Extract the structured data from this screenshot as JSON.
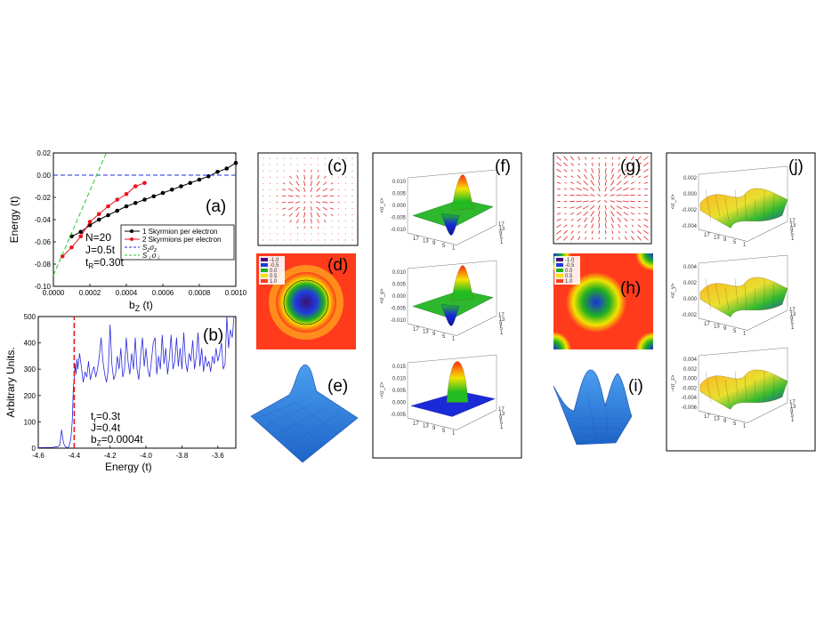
{
  "panel_labels": {
    "a": "(a)",
    "b": "(b)",
    "c": "(c)",
    "d": "(d)",
    "e": "(e)",
    "f": "(f)",
    "g": "(g)",
    "h": "(h)",
    "i": "(i)",
    "j": "(j)"
  },
  "chart_data": [
    {
      "id": "a",
      "type": "line",
      "title": "",
      "xlabel": "b",
      "xlabel_sub": "Z",
      "xlabel_unit": " (t)",
      "ylabel": "Energy (t)",
      "xlim": [
        0,
        0.001
      ],
      "ylim": [
        -0.1,
        0.02
      ],
      "xticks": [
        "0.0000",
        "0.0002",
        "0.0004",
        "0.0006",
        "0.0008",
        "0.0010"
      ],
      "xtick_values": [
        0,
        0.0002,
        0.0004,
        0.0006,
        0.0008,
        0.001
      ],
      "yticks": [
        "0.02",
        "0.00",
        "-0.02",
        "-0.04",
        "-0.06",
        "-0.08",
        "-0.10"
      ],
      "ytick_values": [
        0.02,
        0,
        -0.02,
        -0.04,
        -0.06,
        -0.08,
        -0.1
      ],
      "series": [
        {
          "name": "1 Skyrmion per electron",
          "color": "#000000",
          "style": "line-markers",
          "x": [
            0.0001,
            0.00015,
            0.0002,
            0.00025,
            0.0003,
            0.00035,
            0.0004,
            0.00045,
            0.0005,
            0.00055,
            0.0006,
            0.00065,
            0.0007,
            0.00075,
            0.0008,
            0.00085,
            0.0009,
            0.00095,
            0.001
          ],
          "y": [
            -0.055,
            -0.051,
            -0.045,
            -0.04,
            -0.036,
            -0.032,
            -0.028,
            -0.025,
            -0.022,
            -0.019,
            -0.016,
            -0.013,
            -0.01,
            -0.007,
            -0.004,
            -0.001,
            0.003,
            0.006,
            0.011
          ]
        },
        {
          "name": "2 Skyrmions per electron",
          "color": "#e8141c",
          "style": "line-markers",
          "x": [
            5e-05,
            0.0001,
            0.00015,
            0.0002,
            0.00025,
            0.0003,
            0.00035,
            0.0004,
            0.00045,
            0.0005
          ],
          "y": [
            -0.073,
            -0.065,
            -0.055,
            -0.042,
            -0.035,
            -0.028,
            -0.022,
            -0.017,
            -0.01,
            -0.007
          ]
        },
        {
          "name": "S_z σ_z",
          "color": "#1f2ee0",
          "style": "dashed",
          "x": [
            0,
            0.001
          ],
          "y": [
            0,
            0
          ]
        },
        {
          "name": "S_⊥ σ_⊥",
          "color": "#22cc22",
          "style": "dashed",
          "x": [
            0,
            0.00029
          ],
          "y": [
            -0.09,
            0.02
          ]
        }
      ],
      "legend": {
        "placement": "center-right",
        "entries": [
          {
            "main": "1 Skyrmion per electron"
          },
          {
            "main": "2 Skyrmions per electron"
          },
          {
            "main": "S",
            "sub": "z",
            "mid": "σ",
            "sub2": "z"
          },
          {
            "main": "S",
            "sub": "⊥",
            "mid": "σ",
            "sub2": "⊥"
          }
        ]
      },
      "annotations": [
        {
          "text": "N=20"
        },
        {
          "text": "J=0.5t"
        },
        {
          "text": "t",
          "sub": "R",
          "rest": "=0.30t"
        }
      ]
    },
    {
      "id": "b",
      "type": "line",
      "xlabel": "Energy (t)",
      "ylabel": "Arbitrary Units.",
      "xlim": [
        -4.6,
        -3.5
      ],
      "ylim": [
        0,
        500
      ],
      "xticks": [
        "-4.6",
        "-4.4",
        "-4.2",
        "-4.0",
        "-3.8",
        "-3.6"
      ],
      "xtick_values": [
        -4.6,
        -4.4,
        -4.2,
        -4.0,
        -3.8,
        -3.6
      ],
      "yticks": [
        "500",
        "400",
        "300",
        "200",
        "100",
        "0"
      ],
      "ytick_values": [
        500,
        400,
        300,
        200,
        100,
        0
      ],
      "series": [
        {
          "name": "spectrum",
          "color": "#2a2ae0",
          "style": "line",
          "x": [
            -4.6,
            -4.52,
            -4.49,
            -4.48,
            -4.475,
            -4.47,
            -4.46,
            -4.45,
            -4.44,
            -4.435,
            -4.43,
            -4.42,
            -4.415,
            -4.41,
            -4.405,
            -4.4,
            -4.395,
            -4.39,
            -4.385,
            -4.38,
            -4.37,
            -4.36,
            -4.35,
            -4.34,
            -4.33,
            -4.32,
            -4.31,
            -4.3,
            -4.29,
            -4.28,
            -4.27,
            -4.26,
            -4.25,
            -4.24,
            -4.23,
            -4.22,
            -4.21,
            -4.2,
            -4.19,
            -4.18,
            -4.17,
            -4.16,
            -4.15,
            -4.14,
            -4.13,
            -4.12,
            -4.11,
            -4.1,
            -4.09,
            -4.08,
            -4.07,
            -4.06,
            -4.05,
            -4.04,
            -4.03,
            -4.02,
            -4.01,
            -4.0,
            -3.99,
            -3.98,
            -3.97,
            -3.96,
            -3.95,
            -3.94,
            -3.93,
            -3.92,
            -3.91,
            -3.9,
            -3.89,
            -3.88,
            -3.87,
            -3.86,
            -3.85,
            -3.84,
            -3.83,
            -3.82,
            -3.81,
            -3.8,
            -3.79,
            -3.78,
            -3.77,
            -3.76,
            -3.75,
            -3.74,
            -3.73,
            -3.72,
            -3.71,
            -3.7,
            -3.69,
            -3.68,
            -3.67,
            -3.66,
            -3.65,
            -3.64,
            -3.63,
            -3.62,
            -3.61,
            -3.6,
            -3.59,
            -3.58,
            -3.57,
            -3.56,
            -3.55,
            -3.54,
            -3.53,
            -3.52,
            -3.51
          ],
          "y": [
            2,
            3,
            6,
            12,
            40,
            70,
            20,
            6,
            3,
            2,
            4,
            30,
            60,
            110,
            230,
            260,
            320,
            280,
            340,
            300,
            360,
            310,
            250,
            290,
            270,
            330,
            260,
            290,
            310,
            270,
            300,
            350,
            420,
            330,
            280,
            250,
            300,
            470,
            320,
            260,
            280,
            350,
            300,
            380,
            270,
            300,
            420,
            330,
            280,
            360,
            300,
            420,
            300,
            260,
            350,
            420,
            310,
            380,
            300,
            270,
            330,
            400,
            420,
            280,
            350,
            300,
            430,
            320,
            380,
            280,
            340,
            430,
            300,
            330,
            420,
            310,
            380,
            300,
            440,
            330,
            290,
            360,
            330,
            410,
            300,
            350,
            440,
            310,
            380,
            290,
            350,
            310,
            330,
            290,
            350,
            320,
            380,
            330,
            360,
            400,
            300,
            320,
            500,
            380,
            450,
            420,
            500
          ]
        },
        {
          "name": "threshold",
          "color": "#e21b1b",
          "style": "dashed",
          "x": [
            -4.4,
            -4.4
          ],
          "y": [
            0,
            500
          ]
        }
      ],
      "annotations": [
        {
          "text": "t",
          "sub": "r",
          "rest": "=0.3t"
        },
        {
          "text": "J=0.4t"
        },
        {
          "text": "b",
          "sub": "Z",
          "rest": "=0.0004t"
        }
      ]
    }
  ],
  "colorbar_d": {
    "labels": [
      "-1.0",
      "-0.5",
      "0.0",
      "0.5",
      "1.0"
    ],
    "colors": [
      "#4b0082",
      "#1f3ae0",
      "#1fb01f",
      "#f2e400",
      "#ff3b1c"
    ]
  },
  "colorbar_h": {
    "labels": [
      "-1.0",
      "-0.5",
      "0.0",
      "0.5",
      "1.0"
    ],
    "colors": [
      "#4b0082",
      "#1f3ae0",
      "#1fb01f",
      "#f2e400",
      "#ff3b1c"
    ]
  },
  "panel_f": {
    "ylabels": [
      "<σ_x>",
      "<σ_y>",
      "-<σ_z>"
    ],
    "plot1_ticks": [
      "0.010",
      "0.005",
      "0.000",
      "-0.005",
      "-0.010"
    ],
    "plot2_ticks": [
      "0.010",
      "0.005",
      "0.000",
      "-0.005",
      "-0.010"
    ],
    "plot3_ticks": [
      "0.015",
      "0.010",
      "0.005",
      "0.000",
      "-0.005"
    ],
    "floor_ticks_a": [
      "17",
      "13",
      "9",
      "5",
      "1"
    ],
    "floor_ticks_b": [
      "1",
      "5",
      "9",
      "13",
      "17"
    ]
  },
  "panel_j": {
    "ylabels": [
      "<σ_x>",
      "<σ_y>",
      "-<σ_z>"
    ],
    "plot1_ticks": [
      "0.002",
      "0.000",
      "-0.002",
      "-0.004"
    ],
    "plot2_ticks": [
      "0.004",
      "0.002",
      "0.000",
      "-0.002"
    ],
    "plot3_ticks": [
      "0.004",
      "0.002",
      "0.000",
      "-0.002",
      "-0.004",
      "-0.006"
    ],
    "floor_ticks_a": [
      "17",
      "13",
      "9",
      "5",
      "1"
    ],
    "floor_ticks_b": [
      "1",
      "5",
      "9",
      "13",
      "17"
    ]
  }
}
